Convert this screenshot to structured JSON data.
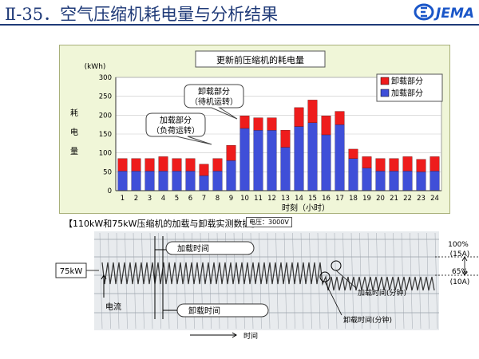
{
  "slide": {
    "title": "Ⅱ-35．空气压缩机耗电量与分析结果",
    "logo_text": "JEMA"
  },
  "chart_data": {
    "type": "bar",
    "title": "更新前压缩机的耗电量",
    "ylabel": "耗电量",
    "yunit": "(kWh)",
    "xlabel": "时刻（小时）",
    "ylim": [
      0,
      300
    ],
    "yticks": [
      0,
      50,
      100,
      150,
      200,
      250,
      300
    ],
    "categories": [
      "1",
      "2",
      "3",
      "4",
      "5",
      "6",
      "7",
      "8",
      "9",
      "10",
      "11",
      "12",
      "13",
      "14",
      "15",
      "16",
      "17",
      "18",
      "19",
      "20",
      "21",
      "22",
      "23",
      "24"
    ],
    "series": [
      {
        "name": "加载部分",
        "color": "#3f4fd8",
        "values": [
          52,
          52,
          52,
          52,
          52,
          52,
          40,
          52,
          80,
          165,
          160,
          160,
          115,
          170,
          180,
          148,
          175,
          85,
          60,
          52,
          52,
          52,
          50,
          52
        ]
      },
      {
        "name": "卸载部分",
        "color": "#ee1c1c",
        "values": [
          33,
          33,
          33,
          38,
          33,
          33,
          30,
          33,
          40,
          33,
          33,
          33,
          45,
          50,
          60,
          50,
          35,
          25,
          30,
          33,
          33,
          38,
          33,
          38
        ]
      }
    ],
    "legend_position": "top-right",
    "annotations": [
      {
        "line1": "卸载部分",
        "line2": "（待机运转）"
      },
      {
        "line1": "加载部分",
        "line2": "（负荷运转）"
      }
    ]
  },
  "photo": {
    "caption": "【110kW和75kW压缩机的加载与卸载实测数据】",
    "voltage_tag": "电压：3000V",
    "label_75kw": "75kW",
    "load_time_label": "加载时间",
    "unload_time_label": "卸载时间",
    "current_label": "电流",
    "time_label": "时间",
    "load_time_min_label": "加载时间(分钟)",
    "unload_time_min_label": "卸载时间(分钟)",
    "pct_100": "100%",
    "amp_15": "(15A)",
    "pct_65": "65%",
    "amp_10": "(10A)"
  }
}
